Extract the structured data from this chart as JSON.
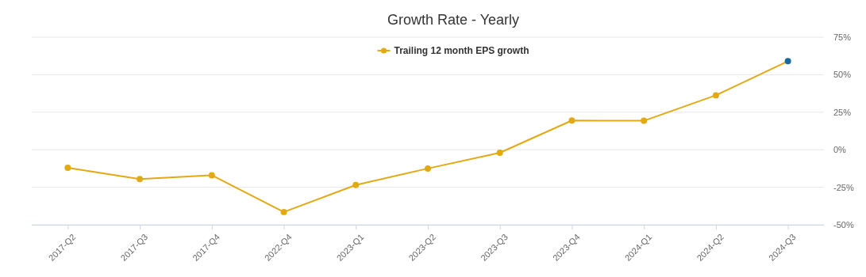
{
  "chart_data": {
    "type": "line",
    "title": "Growth Rate - Yearly",
    "categories": [
      "2017-Q2",
      "2017-Q3",
      "2017-Q4",
      "2022-Q4",
      "2023-Q1",
      "2023-Q2",
      "2023-Q3",
      "2023-Q4",
      "2024-Q1",
      "2024-Q2",
      "2024-Q3"
    ],
    "series": [
      {
        "name": "Trailing 12 month EPS growth",
        "color": "#e2a912",
        "colors": [
          "#e2a912",
          "#e2a912",
          "#e2a912",
          "#e2a912",
          "#e2a912",
          "#e2a912",
          "#e2a912",
          "#e2a912",
          "#e2a912",
          "#e2a912",
          "#1a6aa0"
        ],
        "values": [
          -12,
          -19.5,
          -17,
          -41.5,
          -23.5,
          -12.5,
          -2,
          19.5,
          19.3,
          36.3,
          59
        ]
      }
    ],
    "ylim": [
      -50,
      75
    ],
    "yticks": [
      {
        "value": -50,
        "label": "-50%"
      },
      {
        "value": -25,
        "label": "-25%"
      },
      {
        "value": 0,
        "label": "0%"
      },
      {
        "value": 25,
        "label": "25%"
      },
      {
        "value": 50,
        "label": "50%"
      },
      {
        "value": 75,
        "label": "75%"
      }
    ],
    "grid": "y",
    "legend": "top",
    "marker": "circle",
    "line_style": "solid"
  }
}
